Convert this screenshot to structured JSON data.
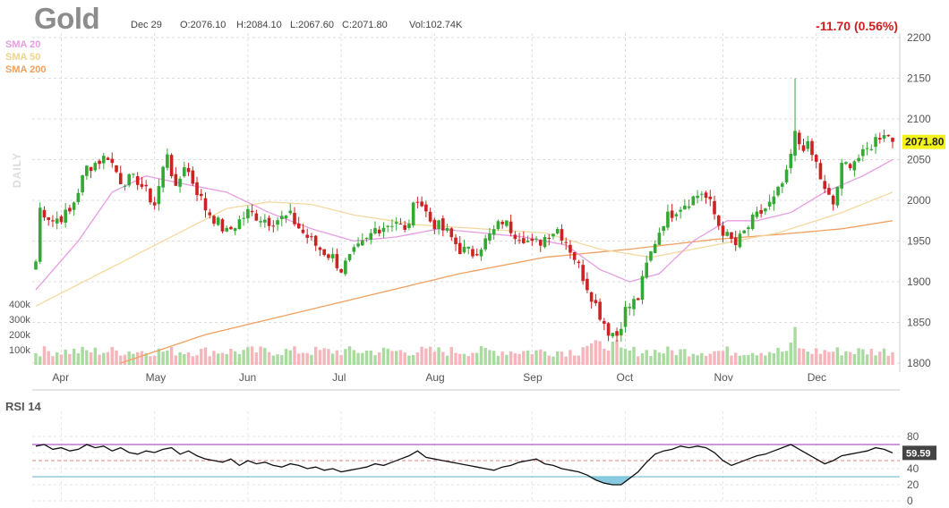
{
  "header": {
    "symbol": "Gold",
    "date": "Dec 29",
    "open": "O:2076.10",
    "high": "H:2084.10",
    "low": "L:2067.60",
    "close": "C:2071.80",
    "volume": "Vol:102.74K",
    "change": "-11.70 (0.56%)"
  },
  "legend": {
    "sma20": "SMA 20",
    "sma50": "SMA 50",
    "sma200": "SMA 200",
    "interval": "DAILY",
    "rsi": "RSI 14"
  },
  "colors": {
    "up": "#33a833",
    "down": "#cc2222",
    "vol_up": "#a9dba0",
    "vol_down": "#f4b6bb",
    "sma20": "#e79ce3",
    "sma50": "#f3d9a0",
    "sma200": "#f0a060",
    "price_tag": "#f3f31a",
    "rsi_top": "#b15cc8",
    "rsi_bottom": "#7bc4dc",
    "rsi_fill": "#7bc4dc",
    "change": "#cc1f1f"
  },
  "chart_data": [
    {
      "type": "candlestick",
      "title": "Gold",
      "price_axis": {
        "min": 1800,
        "max": 2200,
        "ticks": [
          1800,
          1850,
          1900,
          1950,
          2000,
          2050,
          2100,
          2150,
          2200
        ]
      },
      "months": [
        "Apr",
        "May",
        "Jun",
        "Jul",
        "Aug",
        "Sep",
        "Oct",
        "Nov",
        "Dec"
      ],
      "last_price": "2071.80",
      "close_path": [
        [
          0,
          1925
        ],
        [
          1,
          1990
        ],
        [
          4,
          1975
        ],
        [
          8,
          1985
        ],
        [
          12,
          2040
        ],
        [
          17,
          2055
        ],
        [
          20,
          2025
        ],
        [
          24,
          2025
        ],
        [
          28,
          1995
        ],
        [
          31,
          2060
        ],
        [
          33,
          2010
        ],
        [
          35,
          2045
        ],
        [
          40,
          1990
        ],
        [
          45,
          1960
        ],
        [
          50,
          1985
        ],
        [
          55,
          1975
        ],
        [
          60,
          1980
        ],
        [
          63,
          1960
        ],
        [
          67,
          1940
        ],
        [
          70,
          1930
        ],
        [
          72,
          1915
        ],
        [
          75,
          1935
        ],
        [
          78,
          1950
        ],
        [
          80,
          1965
        ],
        [
          85,
          1975
        ],
        [
          87,
          1960
        ],
        [
          90,
          2005
        ],
        [
          93,
          1975
        ],
        [
          97,
          1960
        ],
        [
          100,
          1940
        ],
        [
          103,
          1935
        ],
        [
          106,
          1950
        ],
        [
          108,
          1962
        ],
        [
          110,
          1975
        ],
        [
          113,
          1960
        ],
        [
          115,
          1955
        ],
        [
          117,
          1945
        ],
        [
          119,
          1950
        ],
        [
          121,
          1960
        ],
        [
          123,
          1965
        ],
        [
          125,
          1950
        ],
        [
          127,
          1930
        ],
        [
          130,
          1895
        ],
        [
          133,
          1860
        ],
        [
          135,
          1840
        ],
        [
          137,
          1835
        ],
        [
          139,
          1865
        ],
        [
          142,
          1880
        ],
        [
          144,
          1920
        ],
        [
          146,
          1950
        ],
        [
          148,
          1975
        ],
        [
          151,
          1990
        ],
        [
          154,
          2000
        ],
        [
          157,
          2010
        ],
        [
          159,
          1995
        ],
        [
          161,
          1970
        ],
        [
          163,
          1955
        ],
        [
          165,
          1945
        ],
        [
          167,
          1960
        ],
        [
          169,
          1975
        ],
        [
          171,
          1985
        ],
        [
          174,
          2000
        ],
        [
          177,
          2030
        ],
        [
          179,
          2080
        ],
        [
          180,
          2070
        ],
        [
          182,
          2065
        ],
        [
          184,
          2045
        ],
        [
          186,
          2010
        ],
        [
          188,
          1995
        ],
        [
          190,
          2040
        ],
        [
          193,
          2050
        ],
        [
          195,
          2055
        ],
        [
          198,
          2075
        ],
        [
          200,
          2085
        ],
        [
          202,
          2071.8
        ]
      ],
      "sma20_points": [
        [
          0,
          1890
        ],
        [
          10,
          1950
        ],
        [
          18,
          2010
        ],
        [
          26,
          2030
        ],
        [
          35,
          2020
        ],
        [
          45,
          2010
        ],
        [
          55,
          1985
        ],
        [
          65,
          1965
        ],
        [
          75,
          1950
        ],
        [
          85,
          1955
        ],
        [
          95,
          1965
        ],
        [
          105,
          1960
        ],
        [
          115,
          1955
        ],
        [
          125,
          1945
        ],
        [
          133,
          1915
        ],
        [
          140,
          1900
        ],
        [
          147,
          1910
        ],
        [
          155,
          1950
        ],
        [
          163,
          1975
        ],
        [
          170,
          1975
        ],
        [
          178,
          1985
        ],
        [
          186,
          2010
        ],
        [
          195,
          2030
        ],
        [
          202,
          2050
        ]
      ],
      "sma50_points": [
        [
          0,
          1870
        ],
        [
          15,
          1910
        ],
        [
          30,
          1950
        ],
        [
          45,
          1990
        ],
        [
          55,
          1998
        ],
        [
          65,
          1995
        ],
        [
          75,
          1982
        ],
        [
          90,
          1970
        ],
        [
          105,
          1965
        ],
        [
          120,
          1960
        ],
        [
          133,
          1940
        ],
        [
          145,
          1930
        ],
        [
          160,
          1945
        ],
        [
          175,
          1960
        ],
        [
          190,
          1985
        ],
        [
          202,
          2010
        ]
      ],
      "sma200_points": [
        [
          20,
          1800
        ],
        [
          40,
          1835
        ],
        [
          60,
          1860
        ],
        [
          80,
          1885
        ],
        [
          100,
          1910
        ],
        [
          120,
          1930
        ],
        [
          140,
          1940
        ],
        [
          160,
          1952
        ],
        [
          175,
          1958
        ],
        [
          190,
          1965
        ],
        [
          202,
          1975
        ]
      ]
    },
    {
      "type": "bar",
      "title": "Volume",
      "y_axis": {
        "min": 0,
        "max": 400,
        "ticks": [
          100,
          200,
          300,
          400
        ],
        "tick_labels": [
          "100k",
          "200k",
          "300k",
          "400k"
        ]
      }
    },
    {
      "type": "line",
      "title": "RSI 14",
      "y_axis": {
        "min": 0,
        "max": 100,
        "ticks": [
          0,
          20,
          40,
          60,
          80
        ]
      },
      "overbought": 70,
      "oversold": 30,
      "midline": 50,
      "last_value": "59.59",
      "points": [
        [
          0,
          68
        ],
        [
          2,
          70
        ],
        [
          4,
          64
        ],
        [
          6,
          66
        ],
        [
          8,
          62
        ],
        [
          10,
          64
        ],
        [
          12,
          70
        ],
        [
          14,
          66
        ],
        [
          16,
          68
        ],
        [
          18,
          62
        ],
        [
          20,
          66
        ],
        [
          22,
          60
        ],
        [
          24,
          58
        ],
        [
          26,
          62
        ],
        [
          28,
          60
        ],
        [
          30,
          64
        ],
        [
          32,
          66
        ],
        [
          34,
          58
        ],
        [
          36,
          62
        ],
        [
          38,
          56
        ],
        [
          40,
          52
        ],
        [
          42,
          50
        ],
        [
          44,
          48
        ],
        [
          46,
          52
        ],
        [
          48,
          44
        ],
        [
          50,
          50
        ],
        [
          52,
          46
        ],
        [
          54,
          48
        ],
        [
          56,
          44
        ],
        [
          58,
          42
        ],
        [
          60,
          46
        ],
        [
          62,
          44
        ],
        [
          64,
          40
        ],
        [
          66,
          42
        ],
        [
          68,
          38
        ],
        [
          70,
          40
        ],
        [
          72,
          36
        ],
        [
          74,
          38
        ],
        [
          76,
          40
        ],
        [
          78,
          42
        ],
        [
          80,
          46
        ],
        [
          82,
          44
        ],
        [
          84,
          48
        ],
        [
          86,
          52
        ],
        [
          88,
          56
        ],
        [
          90,
          62
        ],
        [
          92,
          54
        ],
        [
          94,
          52
        ],
        [
          96,
          50
        ],
        [
          98,
          48
        ],
        [
          100,
          46
        ],
        [
          102,
          44
        ],
        [
          104,
          42
        ],
        [
          106,
          40
        ],
        [
          108,
          38
        ],
        [
          110,
          42
        ],
        [
          112,
          44
        ],
        [
          114,
          48
        ],
        [
          116,
          50
        ],
        [
          118,
          52
        ],
        [
          120,
          46
        ],
        [
          122,
          44
        ],
        [
          124,
          40
        ],
        [
          126,
          38
        ],
        [
          128,
          36
        ],
        [
          130,
          32
        ],
        [
          132,
          26
        ],
        [
          134,
          22
        ],
        [
          136,
          20
        ],
        [
          138,
          20
        ],
        [
          140,
          28
        ],
        [
          142,
          36
        ],
        [
          144,
          48
        ],
        [
          146,
          58
        ],
        [
          148,
          62
        ],
        [
          150,
          64
        ],
        [
          152,
          68
        ],
        [
          154,
          66
        ],
        [
          156,
          68
        ],
        [
          158,
          66
        ],
        [
          160,
          60
        ],
        [
          162,
          50
        ],
        [
          164,
          44
        ],
        [
          166,
          48
        ],
        [
          168,
          52
        ],
        [
          170,
          56
        ],
        [
          172,
          58
        ],
        [
          174,
          62
        ],
        [
          176,
          66
        ],
        [
          178,
          70
        ],
        [
          180,
          64
        ],
        [
          182,
          58
        ],
        [
          184,
          52
        ],
        [
          186,
          46
        ],
        [
          188,
          50
        ],
        [
          190,
          56
        ],
        [
          192,
          58
        ],
        [
          194,
          60
        ],
        [
          196,
          62
        ],
        [
          198,
          66
        ],
        [
          200,
          64
        ],
        [
          202,
          59.59
        ]
      ]
    }
  ]
}
